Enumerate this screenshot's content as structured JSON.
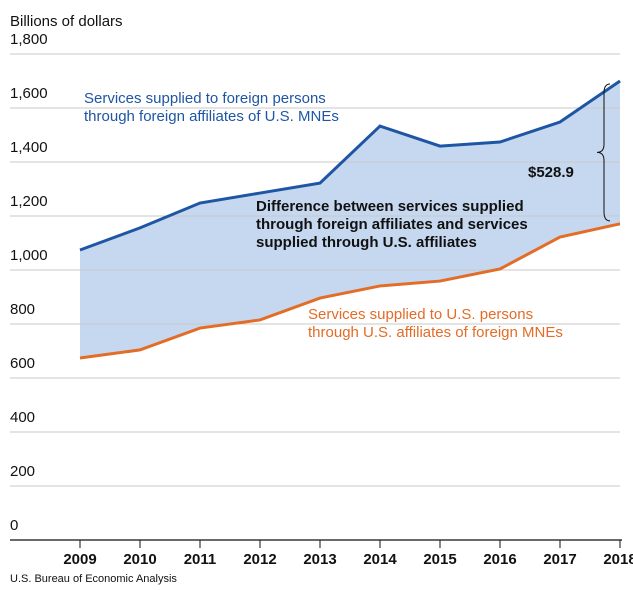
{
  "chart_data": {
    "type": "line",
    "title": "Billions of dollars",
    "source": "U.S. Bureau of Economic Analysis",
    "categories": [
      "2009",
      "2010",
      "2011",
      "2012",
      "2013",
      "2014",
      "2015",
      "2016",
      "2017",
      "2018"
    ],
    "series": [
      {
        "name": "Services supplied to foreign persons\nthrough foreign affiliates of U.S. MNEs",
        "color": "#1f56a3",
        "values": [
          1074,
          1156,
          1248,
          1285,
          1322,
          1533,
          1459,
          1474,
          1548,
          1700
        ]
      },
      {
        "name": "Services supplied to U.S. persons\nthrough U.S. affiliates of foreign MNEs",
        "color": "#e36c26",
        "values": [
          674,
          704,
          785,
          815,
          896,
          941,
          959,
          1004,
          1122,
          1171
        ]
      }
    ],
    "annotations": [
      "Difference between services supplied\nthrough foreign affiliates and services\nsupplied through U.S. affiliates",
      "$528.9"
    ],
    "area_color": "#c6d8ef",
    "ylim": [
      0,
      1800
    ],
    "yticks": [
      0,
      200,
      400,
      600,
      800,
      {
        "value": 1000,
        "label": "1,000"
      },
      {
        "value": 1200,
        "label": "1,200"
      },
      {
        "value": 1400,
        "label": "1,400"
      },
      {
        "value": 1600,
        "label": "1,600"
      },
      {
        "value": 1800,
        "label": "1,800"
      }
    ],
    "grid": true
  }
}
